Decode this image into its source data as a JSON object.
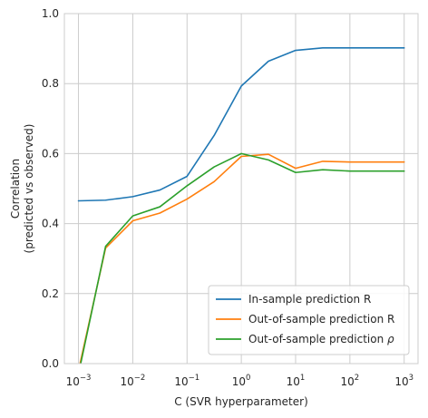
{
  "chart_data": {
    "type": "line",
    "title": "",
    "xlabel": "C (SVR hyperparameter)",
    "ylabel_lines": [
      "Correlation",
      "(predicted vs observed)"
    ],
    "xscale": "log",
    "xlim": [
      0.00055,
      1800
    ],
    "ylim": [
      0.0,
      1.0
    ],
    "grid": true,
    "legend_position": "lower-right",
    "x": [
      0.001,
      0.00316,
      0.01,
      0.0316,
      0.1,
      0.316,
      1,
      3.16,
      10,
      31.6,
      100,
      316,
      1000
    ],
    "x_ticks": [
      {
        "value": 0.001,
        "base": "10",
        "exp": "−3"
      },
      {
        "value": 0.01,
        "base": "10",
        "exp": "−2"
      },
      {
        "value": 0.1,
        "base": "10",
        "exp": "−1"
      },
      {
        "value": 1,
        "base": "10",
        "exp": "0"
      },
      {
        "value": 10,
        "base": "10",
        "exp": "1"
      },
      {
        "value": 100,
        "base": "10",
        "exp": "2"
      },
      {
        "value": 1000,
        "base": "10",
        "exp": "3"
      }
    ],
    "y_ticks": [
      {
        "value": 0.0,
        "label": "0.0"
      },
      {
        "value": 0.2,
        "label": "0.2"
      },
      {
        "value": 0.4,
        "label": "0.4"
      },
      {
        "value": 0.6,
        "label": "0.6"
      },
      {
        "value": 0.8,
        "label": "0.8"
      },
      {
        "value": 1.0,
        "label": "1.0"
      }
    ],
    "series": [
      {
        "name": "In-sample prediction R",
        "color": "#1f77b4",
        "values": [
          0.465,
          0.467,
          0.477,
          0.496,
          0.535,
          0.652,
          0.793,
          0.864,
          0.895,
          0.902,
          0.902,
          0.902,
          0.902
        ]
      },
      {
        "name": "Out-of-sample prediction R",
        "color": "#ff7f0e",
        "values": [
          -0.02,
          0.33,
          0.408,
          0.43,
          0.47,
          0.52,
          0.592,
          0.598,
          0.558,
          0.578,
          0.576,
          0.576,
          0.576
        ]
      },
      {
        "name": "Out-of-sample prediction ρ",
        "name_display": [
          "Out-of-sample prediction ",
          "ρ"
        ],
        "color": "#2ca02c",
        "values": [
          -0.03,
          0.335,
          0.422,
          0.448,
          0.508,
          0.562,
          0.6,
          0.582,
          0.546,
          0.554,
          0.55,
          0.55,
          0.55
        ]
      }
    ]
  }
}
